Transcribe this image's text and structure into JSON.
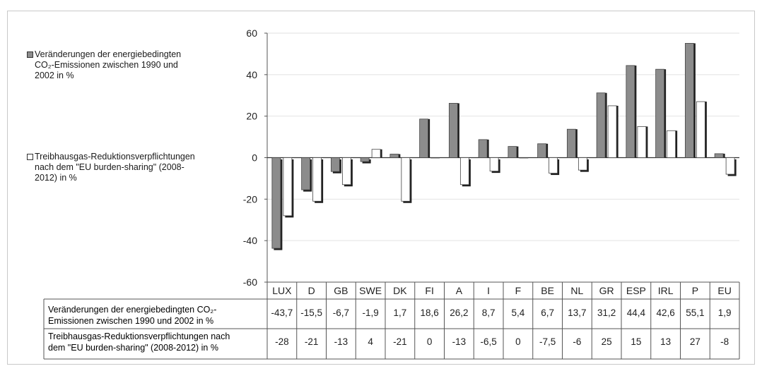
{
  "chart_data": {
    "type": "bar",
    "categories": [
      "LUX",
      "D",
      "GB",
      "SWE",
      "DK",
      "FI",
      "A",
      "I",
      "F",
      "BE",
      "NL",
      "GR",
      "ESP",
      "IRL",
      "P",
      "EU"
    ],
    "series": [
      {
        "name": "Veränderungen der energiebedingten CO₂-Emissionen zwischen 1990 und 2002 in %",
        "color": "#8c8c8c",
        "values": [
          -43.7,
          -15.5,
          -6.7,
          -1.9,
          1.7,
          18.6,
          26.2,
          8.7,
          5.4,
          6.7,
          13.7,
          31.2,
          44.4,
          42.6,
          55.1,
          1.9
        ],
        "value_labels": [
          "-43,7",
          "-15,5",
          "-6,7",
          "-1,9",
          "1,7",
          "18,6",
          "26,2",
          "8,7",
          "5,4",
          "6,7",
          "13,7",
          "31,2",
          "44,4",
          "42,6",
          "55,1",
          "1,9"
        ]
      },
      {
        "name": "Treibhausgas-Reduktionsverpflichtungen nach dem \"EU burden-sharing\" (2008-2012) in %",
        "color": "#ffffff",
        "values": [
          -28,
          -21,
          -13,
          4,
          -21,
          0,
          -13,
          -6.5,
          0,
          -7.5,
          -6,
          25,
          15,
          13,
          27,
          -8
        ],
        "value_labels": [
          "-28",
          "-21",
          "-13",
          "4",
          "-21",
          "0",
          "-13",
          "-6,5",
          "0",
          "-7,5",
          "-6",
          "25",
          "15",
          "13",
          "27",
          "-8"
        ]
      }
    ],
    "ylim": [
      -60,
      60
    ],
    "yticks": [
      60,
      40,
      20,
      0,
      -20,
      -40,
      -60
    ],
    "ytick_labels": [
      "60",
      "40",
      "20",
      "0",
      "-20",
      "-40",
      "-60"
    ],
    "grid": true,
    "legend_position": "left",
    "table_row_labels": [
      "Veränderungen der energiebedingten CO₂-Emissionen zwischen 1990 und 2002 in %",
      "Treibhausgas-Reduktionsverpflichtungen nach dem \"EU burden-sharing\" (2008-2012) in %"
    ]
  },
  "legend": {
    "item1_lines": [
      "Veränderungen der energiebedingten",
      "CO₂-Emissionen zwischen 1990 und",
      "2002 in %"
    ],
    "item2_lines": [
      "Treibhausgas-Reduktionsverpflichtungen",
      "nach dem \"EU burden-sharing\" (2008-",
      "2012) in %"
    ],
    "item1_color": "#8c8c8c",
    "item2_color": "#ffffff"
  },
  "table": {
    "row1_lines": [
      "Veränderungen der energiebedingten CO₂-",
      "Emissionen zwischen 1990 und 2002 in %"
    ],
    "row2_lines": [
      "Treibhausgas-Reduktionsverpflichtungen nach",
      "dem \"EU burden-sharing\" (2008-2012) in %"
    ]
  }
}
